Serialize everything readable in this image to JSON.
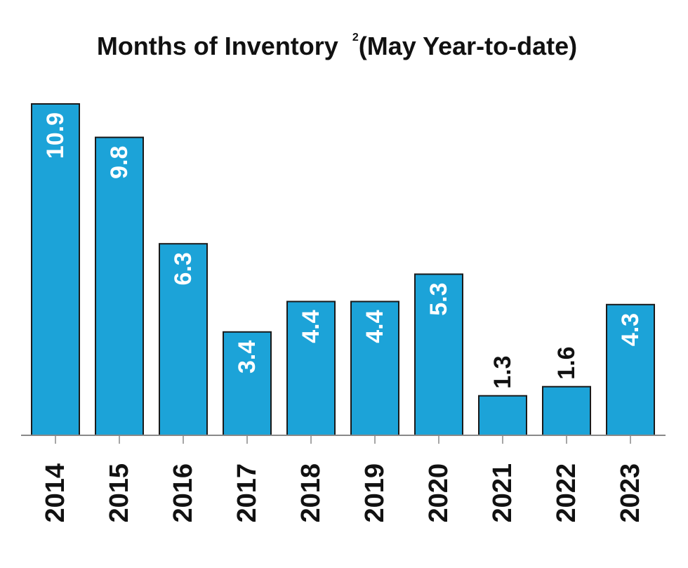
{
  "chart_data": {
    "type": "bar",
    "title": "Months of Inventory",
    "title_superscript": "2",
    "subtitle": "(May Year-to-date)",
    "categories": [
      "2014",
      "2015",
      "2016",
      "2017",
      "2018",
      "2019",
      "2020",
      "2021",
      "2022",
      "2023"
    ],
    "values": [
      10.9,
      9.8,
      6.3,
      3.4,
      4.4,
      4.4,
      5.3,
      1.3,
      1.6,
      4.3
    ],
    "value_labels": [
      "10.9",
      "9.8",
      "6.3",
      "3.4",
      "4.4",
      "4.4",
      "5.3",
      "1.3",
      "1.6",
      "4.3"
    ],
    "xlabel": "",
    "ylabel": "",
    "ylim": [
      0,
      11
    ],
    "grid": false,
    "legend": "none",
    "colors": {
      "bar": "#1ca3d8",
      "label_inside": "#ffffff",
      "label_outside": "#111111",
      "axis": "#888888"
    }
  }
}
